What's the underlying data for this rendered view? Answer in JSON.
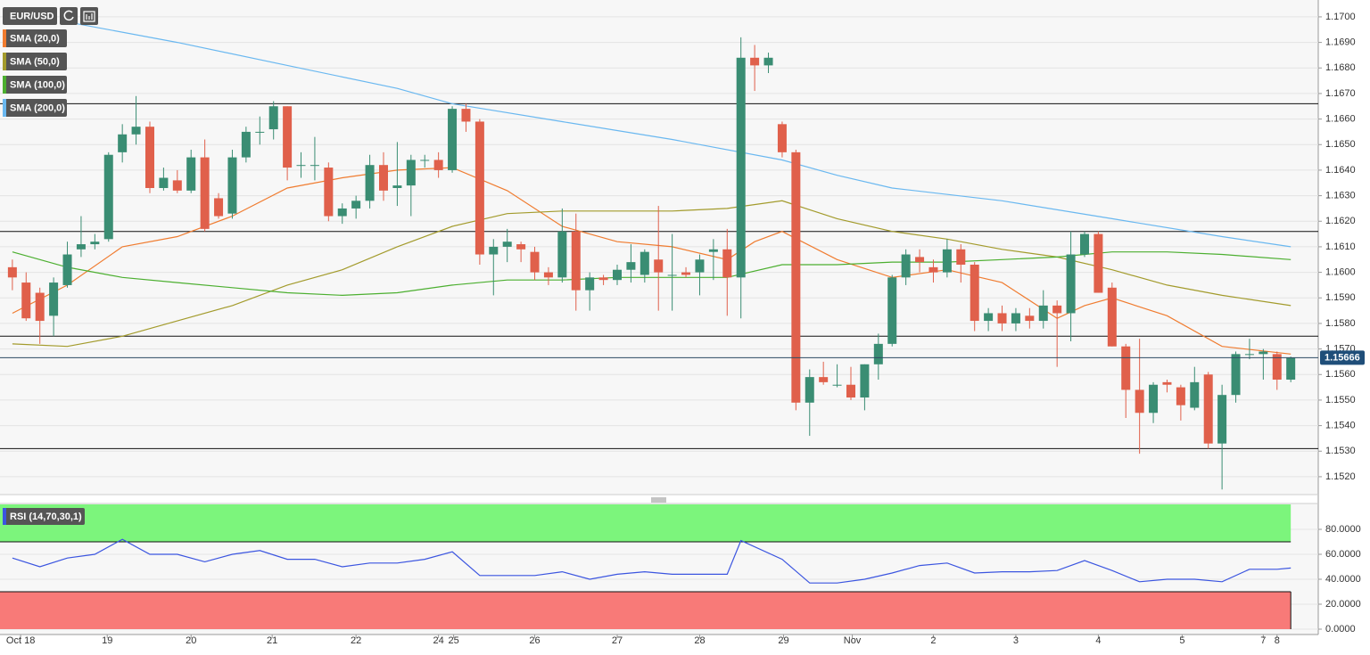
{
  "chart_data": [
    {
      "type": "candlestick",
      "title": "EUR/USD",
      "up_color": "#3a8d73",
      "down_color": "#e0604b",
      "open": [
        1.1602,
        1.1596,
        1.1592,
        1.1583,
        1.1595,
        1.1609,
        1.1611,
        1.1613,
        1.1647,
        1.1654,
        1.1657,
        1.1633,
        1.1636,
        1.1632,
        1.1645,
        1.1629,
        1.1623,
        1.1645,
        1.1655,
        1.1656,
        1.1665,
        1.1642,
        1.1642,
        1.1641,
        1.1622,
        1.1625,
        1.1628,
        1.1642,
        1.1633,
        1.1634,
        1.1644,
        1.1644,
        1.164,
        1.1664,
        1.1659,
        1.1607,
        1.161,
        1.1611,
        1.1608,
        1.16,
        1.1598,
        1.1616,
        1.1593,
        1.1598,
        1.1597,
        1.1601,
        1.1599,
        1.1605,
        1.1599,
        1.16,
        1.16,
        1.1608,
        1.1609,
        1.1598,
        1.1684,
        1.1681,
        1.1658,
        1.1647,
        1.1549,
        1.1559,
        1.1556,
        1.1556,
        1.1551,
        1.1564,
        1.1572,
        1.1598,
        1.1606,
        1.1602,
        1.16,
        1.1609,
        1.1603,
        1.1581,
        1.1584,
        1.158,
        1.1583,
        1.1581,
        1.1587,
        1.1584,
        1.1607,
        1.1615,
        1.1594,
        1.1571,
        1.1554,
        1.1545,
        1.1557,
        1.1555,
        1.1547,
        1.156,
        1.1533,
        1.1552,
        1.1568,
        1.1568,
        1.1568,
        1.1558
      ],
      "high": [
        1.1605,
        1.16,
        1.1594,
        1.1598,
        1.1612,
        1.1622,
        1.1615,
        1.1647,
        1.1658,
        1.1669,
        1.1659,
        1.1641,
        1.164,
        1.1648,
        1.1652,
        1.1631,
        1.1648,
        1.1657,
        1.1661,
        1.1667,
        1.1665,
        1.1647,
        1.1653,
        1.1643,
        1.1627,
        1.163,
        1.1646,
        1.1647,
        1.1651,
        1.1646,
        1.1646,
        1.1647,
        1.1665,
        1.1666,
        1.166,
        1.1613,
        1.1617,
        1.1612,
        1.161,
        1.1602,
        1.1625,
        1.1623,
        1.16,
        1.1599,
        1.1603,
        1.1611,
        1.1609,
        1.1626,
        1.1615,
        1.1602,
        1.1607,
        1.1613,
        1.1617,
        1.1692,
        1.1689,
        1.1686,
        1.1659,
        1.1648,
        1.1562,
        1.1565,
        1.1564,
        1.1563,
        1.1564,
        1.1576,
        1.1599,
        1.1609,
        1.1609,
        1.1605,
        1.1613,
        1.1611,
        1.1604,
        1.1586,
        1.1587,
        1.1586,
        1.1586,
        1.1593,
        1.1589,
        1.1616,
        1.1616,
        1.1616,
        1.1596,
        1.1572,
        1.1574,
        1.1557,
        1.1558,
        1.1556,
        1.1563,
        1.1561,
        1.1556,
        1.1569,
        1.1574,
        1.157,
        1.1569,
        1.1567
      ],
      "low": [
        1.1593,
        1.1581,
        1.1572,
        1.1575,
        1.1594,
        1.1606,
        1.1609,
        1.1612,
        1.1643,
        1.165,
        1.1631,
        1.1632,
        1.1631,
        1.1631,
        1.1616,
        1.1621,
        1.1621,
        1.1643,
        1.165,
        1.1652,
        1.1636,
        1.1637,
        1.1636,
        1.162,
        1.1619,
        1.1621,
        1.1625,
        1.1628,
        1.1626,
        1.1622,
        1.1641,
        1.1637,
        1.1639,
        1.1655,
        1.1603,
        1.1591,
        1.1604,
        1.1604,
        1.1597,
        1.1595,
        1.1596,
        1.1585,
        1.1585,
        1.1595,
        1.1595,
        1.1596,
        1.1596,
        1.1585,
        1.1585,
        1.1598,
        1.1591,
        1.1597,
        1.1583,
        1.1582,
        1.1671,
        1.1678,
        1.1645,
        1.1546,
        1.1536,
        1.1556,
        1.1555,
        1.155,
        1.1546,
        1.1558,
        1.1571,
        1.1595,
        1.16,
        1.1596,
        1.1598,
        1.1596,
        1.1577,
        1.1577,
        1.1577,
        1.1577,
        1.1578,
        1.1578,
        1.1563,
        1.1573,
        1.1606,
        1.1592,
        1.1571,
        1.1543,
        1.1529,
        1.1541,
        1.1553,
        1.1542,
        1.1546,
        1.1531,
        1.1515,
        1.1549,
        1.1566,
        1.1558,
        1.1554,
        1.1557
      ],
      "close": [
        1.1598,
        1.1582,
        1.1581,
        1.1596,
        1.1607,
        1.1611,
        1.1612,
        1.1646,
        1.1654,
        1.1657,
        1.1633,
        1.1637,
        1.1632,
        1.1645,
        1.1617,
        1.1622,
        1.1645,
        1.1655,
        1.1655,
        1.1665,
        1.1641,
        1.1642,
        1.1642,
        1.1622,
        1.1625,
        1.1628,
        1.1642,
        1.1632,
        1.1634,
        1.1644,
        1.1644,
        1.164,
        1.1664,
        1.1659,
        1.1607,
        1.161,
        1.1612,
        1.1609,
        1.16,
        1.1598,
        1.1616,
        1.1593,
        1.1598,
        1.1597,
        1.1601,
        1.1604,
        1.1608,
        1.16,
        1.1599,
        1.1599,
        1.1605,
        1.1609,
        1.1598,
        1.1684,
        1.1681,
        1.1684,
        1.1647,
        1.1549,
        1.1559,
        1.1557,
        1.1556,
        1.1551,
        1.1564,
        1.1572,
        1.1598,
        1.1607,
        1.1604,
        1.16,
        1.1609,
        1.1603,
        1.1581,
        1.1584,
        1.158,
        1.1584,
        1.1581,
        1.1587,
        1.1584,
        1.1607,
        1.1615,
        1.1592,
        1.1571,
        1.1554,
        1.1545,
        1.1556,
        1.1556,
        1.1548,
        1.1557,
        1.1533,
        1.1552,
        1.1568,
        1.1568,
        1.1569,
        1.1558,
        1.15666
      ],
      "series": [
        {
          "name": "SMA (20,0)",
          "color": "#f07c30",
          "x": [
            0,
            4,
            8,
            12,
            16,
            20,
            24,
            28,
            32,
            36,
            40,
            44,
            48,
            52,
            54,
            56,
            60,
            64,
            68,
            72,
            76,
            78,
            80,
            84,
            88,
            93
          ],
          "values": [
            1.1584,
            1.1595,
            1.161,
            1.1614,
            1.1622,
            1.1633,
            1.1637,
            1.164,
            1.1641,
            1.1632,
            1.1618,
            1.1612,
            1.161,
            1.1605,
            1.1612,
            1.1616,
            1.1605,
            1.1598,
            1.1601,
            1.1596,
            1.1582,
            1.1587,
            1.159,
            1.1583,
            1.1571,
            1.1568
          ]
        },
        {
          "name": "SMA (50,0)",
          "color": "#a39b2c",
          "x": [
            0,
            4,
            8,
            12,
            16,
            20,
            24,
            28,
            32,
            36,
            40,
            44,
            48,
            52,
            56,
            60,
            64,
            68,
            72,
            76,
            80,
            84,
            88,
            93
          ],
          "values": [
            1.1572,
            1.1571,
            1.1575,
            1.1581,
            1.1587,
            1.1595,
            1.1601,
            1.161,
            1.1618,
            1.1623,
            1.1624,
            1.1624,
            1.1624,
            1.1625,
            1.1628,
            1.1621,
            1.1616,
            1.1613,
            1.1609,
            1.1606,
            1.1601,
            1.1595,
            1.1591,
            1.1587
          ]
        },
        {
          "name": "SMA (100,0)",
          "color": "#4caf30",
          "x": [
            0,
            4,
            8,
            12,
            16,
            20,
            24,
            28,
            32,
            36,
            40,
            44,
            48,
            52,
            56,
            60,
            64,
            68,
            72,
            76,
            80,
            84,
            88,
            93
          ],
          "values": [
            1.1608,
            1.1602,
            1.1598,
            1.1596,
            1.1594,
            1.1592,
            1.1591,
            1.1592,
            1.1595,
            1.1597,
            1.1597,
            1.1598,
            1.1598,
            1.1598,
            1.1603,
            1.1603,
            1.1604,
            1.1604,
            1.1605,
            1.1606,
            1.1608,
            1.1608,
            1.1607,
            1.1605
          ]
        },
        {
          "name": "SMA (200,0)",
          "color": "#6ab8f0",
          "x": [
            4,
            12,
            20,
            28,
            32,
            40,
            48,
            56,
            60,
            64,
            72,
            80,
            88,
            93
          ],
          "values": [
            1.1698,
            1.169,
            1.1681,
            1.1672,
            1.1666,
            1.1659,
            1.1652,
            1.1644,
            1.1638,
            1.1633,
            1.1628,
            1.1621,
            1.1614,
            1.161
          ]
        }
      ],
      "levels": [
        1.1666,
        1.1616,
        1.1575,
        1.1531
      ],
      "last_price": 1.15666,
      "ylim": [
        1.1513,
        1.17066
      ],
      "yticks": [
        {
          "value": 1.17,
          "label": "1.1700"
        },
        {
          "value": 1.169,
          "label": "1.1690"
        },
        {
          "value": 1.168,
          "label": "1.1680"
        },
        {
          "value": 1.167,
          "label": "1.1670"
        },
        {
          "value": 1.166,
          "label": "1.1660"
        },
        {
          "value": 1.165,
          "label": "1.1650"
        },
        {
          "value": 1.164,
          "label": "1.1640"
        },
        {
          "value": 1.163,
          "label": "1.1630"
        },
        {
          "value": 1.162,
          "label": "1.1620"
        },
        {
          "value": 1.161,
          "label": "1.1610"
        },
        {
          "value": 1.16,
          "label": "1.1600"
        },
        {
          "value": 1.159,
          "label": "1.1590"
        },
        {
          "value": 1.158,
          "label": "1.1580"
        },
        {
          "value": 1.157,
          "label": "1.1570"
        },
        {
          "value": 1.156,
          "label": "1.1560"
        },
        {
          "value": 1.155,
          "label": "1.1550"
        },
        {
          "value": 1.154,
          "label": "1.1540"
        },
        {
          "value": 1.153,
          "label": "1.1530"
        },
        {
          "value": 1.152,
          "label": "1.1520"
        }
      ],
      "xlim": [
        -0.9,
        95.0
      ],
      "xticks": [
        {
          "value": 0.6,
          "label": "Oct 18"
        },
        {
          "value": 6.9,
          "label": "19"
        },
        {
          "value": 13,
          "label": "20"
        },
        {
          "value": 18.9,
          "label": "21"
        },
        {
          "value": 25,
          "label": "22"
        },
        {
          "value": 31,
          "label": "24"
        },
        {
          "value": 32.1,
          "label": "25"
        },
        {
          "value": 38,
          "label": "26"
        },
        {
          "value": 44,
          "label": "27"
        },
        {
          "value": 50,
          "label": "28"
        },
        {
          "value": 56.1,
          "label": "29"
        },
        {
          "value": 61.1,
          "label": "Nov"
        },
        {
          "value": 67,
          "label": "2"
        },
        {
          "value": 73,
          "label": "3"
        },
        {
          "value": 79,
          "label": "4"
        },
        {
          "value": 85.1,
          "label": "5"
        },
        {
          "value": 91,
          "label": "7"
        },
        {
          "value": 92,
          "label": "8"
        }
      ],
      "grid": true
    },
    {
      "type": "line",
      "title": "RSI (14,70,30,1)",
      "color": "#3b55e0",
      "upper": 70,
      "lower": 30,
      "upper_color": "#7cf57c",
      "lower_color": "#f87a78",
      "x": [
        0,
        2,
        4,
        6,
        8,
        10,
        12,
        14,
        16,
        18,
        20,
        22,
        24,
        26,
        28,
        30,
        32,
        34,
        36,
        38,
        40,
        42,
        44,
        46,
        48,
        50,
        52,
        53,
        56,
        58,
        60,
        62,
        64,
        66,
        68,
        70,
        72,
        74,
        76,
        78,
        80,
        82,
        84,
        86,
        88,
        90,
        92,
        93
      ],
      "values": [
        57,
        50,
        57,
        60,
        72,
        60,
        60,
        54,
        60,
        63,
        56,
        56,
        50,
        53,
        53,
        56,
        62,
        43,
        43,
        43,
        46,
        40,
        44,
        46,
        44,
        44,
        44,
        71,
        56,
        37,
        37,
        40,
        45,
        51,
        53,
        45,
        46,
        46,
        47,
        55,
        47,
        38,
        40,
        40,
        38,
        48,
        48,
        49
      ],
      "ylim": [
        0,
        100
      ],
      "yticks": [
        {
          "value": 80,
          "label": "80.0000"
        },
        {
          "value": 60,
          "label": "60.0000"
        },
        {
          "value": 40,
          "label": "40.0000"
        },
        {
          "value": 20,
          "label": "20.0000"
        },
        {
          "value": 0,
          "label": "0.0000"
        }
      ]
    }
  ]
}
